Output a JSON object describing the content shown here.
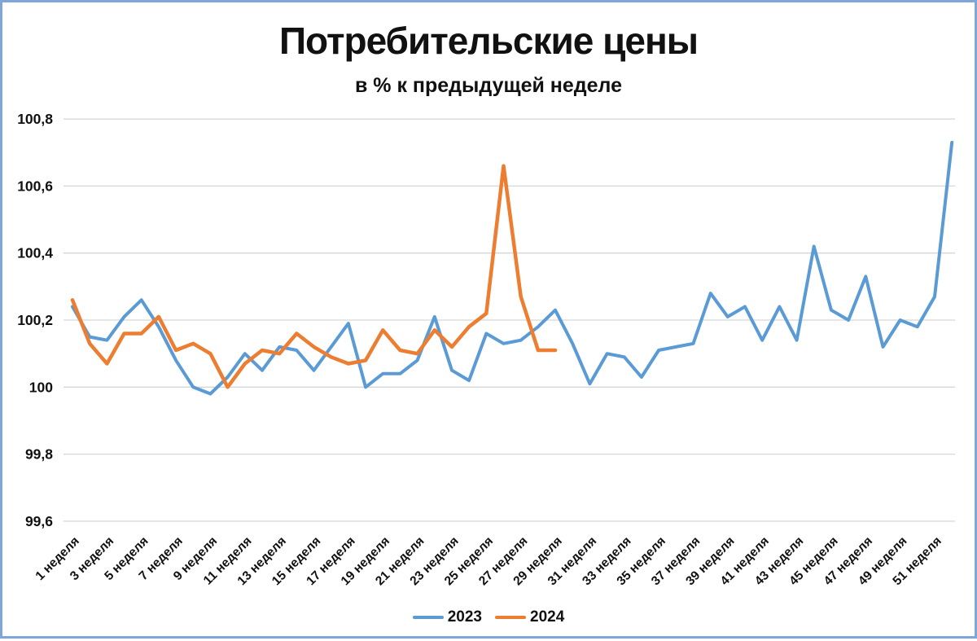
{
  "chart_data": {
    "type": "line",
    "title": "Потребительские цены",
    "subtitle": "в % к предыдущей неделе",
    "grid": true,
    "legend_position": "bottom",
    "ylim": [
      99.6,
      100.8
    ],
    "y_tick_values": [
      100.8,
      100.6,
      100.4,
      100.2,
      100.0,
      99.8,
      99.6
    ],
    "y_tick_labels": [
      "100,8",
      "100,6",
      "100,4",
      "100,2",
      "100",
      "99,8",
      "99,6"
    ],
    "x_tick_weeks": [
      1,
      3,
      5,
      7,
      9,
      11,
      13,
      15,
      17,
      19,
      21,
      23,
      25,
      27,
      29,
      31,
      33,
      35,
      37,
      39,
      41,
      43,
      45,
      47,
      49,
      51
    ],
    "x_tick_labels": [
      "1 неделя",
      "3 неделя",
      "5 неделя",
      "7 неделя",
      "9 неделя",
      "11 неделя",
      "13 неделя",
      "15 неделя",
      "17 неделя",
      "19 неделя",
      "21 неделя",
      "23 неделя",
      "25 неделя",
      "27 неделя",
      "29 неделя",
      "31 неделя",
      "33 неделя",
      "35 неделя",
      "37 неделя",
      "39 неделя",
      "41 неделя",
      "43 неделя",
      "45 неделя",
      "47 неделя",
      "49 неделя",
      "51 неделя"
    ],
    "colors": {
      "series_2023": "#5B9BD5",
      "series_2024": "#ED7D31",
      "gridline": "#D6D6D6",
      "frame_border": "#7EA6DB",
      "text": "#111111"
    },
    "series": [
      {
        "name": "2023",
        "color": "#5B9BD5",
        "weeks": [
          1,
          2,
          3,
          4,
          5,
          6,
          7,
          8,
          9,
          10,
          11,
          12,
          13,
          14,
          15,
          16,
          17,
          18,
          19,
          20,
          21,
          22,
          23,
          24,
          25,
          26,
          27,
          28,
          29,
          30,
          31,
          32,
          33,
          34,
          35,
          36,
          37,
          38,
          39,
          40,
          41,
          42,
          43,
          44,
          45,
          46,
          47,
          48,
          49,
          50,
          51,
          52
        ],
        "values": [
          100.24,
          100.15,
          100.14,
          100.21,
          100.26,
          100.18,
          100.08,
          100.0,
          99.98,
          100.03,
          100.1,
          100.05,
          100.12,
          100.11,
          100.05,
          100.12,
          100.19,
          100.0,
          100.04,
          100.04,
          100.08,
          100.21,
          100.05,
          100.02,
          100.16,
          100.13,
          100.14,
          100.18,
          100.23,
          100.13,
          100.01,
          100.1,
          100.09,
          100.03,
          100.11,
          100.12,
          100.13,
          100.28,
          100.21,
          100.24,
          100.14,
          100.24,
          100.14,
          100.42,
          100.23,
          100.2,
          100.33,
          100.12,
          100.2,
          100.18,
          100.27,
          100.73
        ]
      },
      {
        "name": "2024",
        "color": "#ED7D31",
        "weeks": [
          1,
          2,
          3,
          4,
          5,
          6,
          7,
          8,
          9,
          10,
          11,
          12,
          13,
          14,
          15,
          16,
          17,
          18,
          19,
          20,
          21,
          22,
          23,
          24,
          25,
          26,
          27,
          28,
          29
        ],
        "values": [
          100.26,
          100.13,
          100.07,
          100.16,
          100.16,
          100.21,
          100.11,
          100.13,
          100.1,
          100.0,
          100.07,
          100.11,
          100.1,
          100.16,
          100.12,
          100.09,
          100.07,
          100.08,
          100.17,
          100.11,
          100.1,
          100.17,
          100.12,
          100.18,
          100.22,
          100.66,
          100.27,
          100.11,
          100.11
        ]
      }
    ]
  }
}
